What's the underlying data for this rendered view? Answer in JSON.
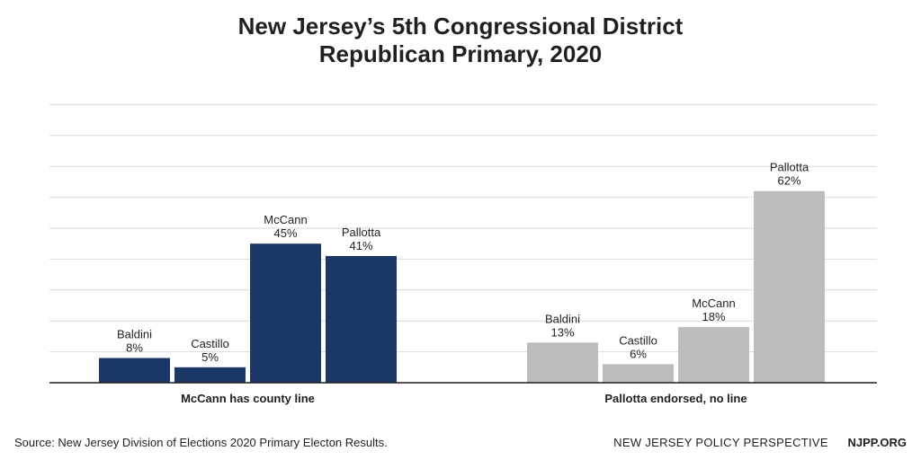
{
  "chart_data": {
    "type": "bar",
    "title_lines": [
      "New Jersey’s 5th Congressional District",
      "Republican Primary, 2020"
    ],
    "xlabel": "",
    "ylabel": "",
    "ylim": [
      0,
      90
    ],
    "grid": true,
    "legend": "none",
    "groups": [
      {
        "label": "McCann has county line",
        "color": "#1b3766",
        "bars": [
          {
            "name": "Baldini",
            "value": 8,
            "label": "8%"
          },
          {
            "name": "Castillo",
            "value": 5,
            "label": "5%"
          },
          {
            "name": "McCann",
            "value": 45,
            "label": "45%"
          },
          {
            "name": "Pallotta",
            "value": 41,
            "label": "41%"
          }
        ]
      },
      {
        "label": "Pallotta endorsed, no line",
        "color": "#bbbcbe",
        "bars": [
          {
            "name": "Baldini",
            "value": 13,
            "label": "13%"
          },
          {
            "name": "Castillo",
            "value": 6,
            "label": "6%"
          },
          {
            "name": "McCann",
            "value": 18,
            "label": "18%"
          },
          {
            "name": "Pallotta",
            "value": 62,
            "label": "62%"
          }
        ]
      }
    ]
  },
  "footer": {
    "source": "Source: New Jersey Division of Elections 2020 Primary Electon Results.",
    "publisher": "NEW JERSEY POLICY PERSPECTIVE",
    "site": "NJPP.ORG"
  }
}
